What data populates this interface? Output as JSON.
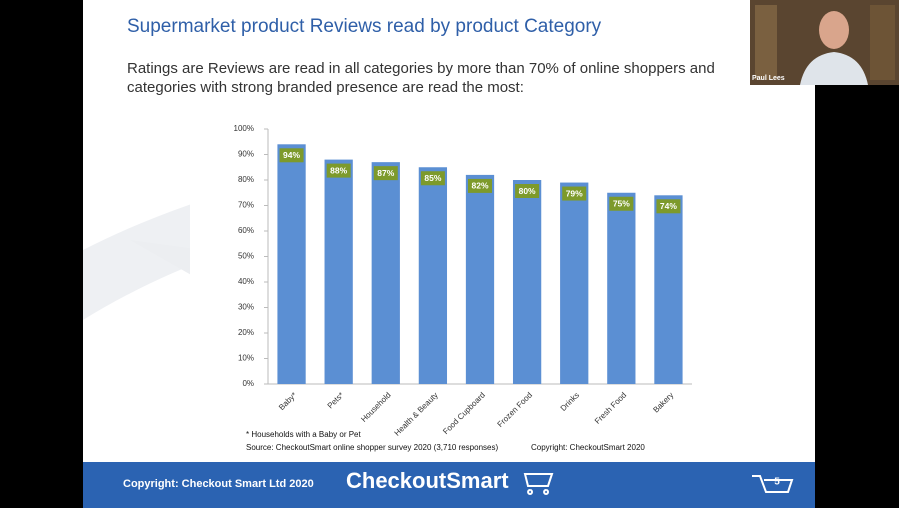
{
  "slide": {
    "title": "Supermarket product Reviews read by product Category",
    "subtitle_lines": [
      "Ratings are Reviews are read in all categories by more than 70% of online shoppers and",
      "categories with strong branded presence are read the most:"
    ],
    "footnote": "* Households with a Baby or Pet",
    "source": "Source: CheckoutSmart online shopper survey 2020 (3,710 responses)",
    "chart_copyright": "Copyright: CheckoutSmart 2020",
    "footer_copyright": "Copyright: Checkout Smart Ltd 2020",
    "logo": "CheckoutSmart",
    "page_number": "5"
  },
  "video": {
    "participant": "Paul Lees"
  },
  "chart_data": {
    "type": "bar",
    "categories": [
      "Baby*",
      "Pets*",
      "Household",
      "Health & Beauty",
      "Food Cupboard",
      "Frozen Food",
      "Drinks",
      "Fresh Food",
      "Bakery"
    ],
    "values": [
      94,
      88,
      87,
      85,
      82,
      80,
      79,
      75,
      74
    ],
    "value_labels": [
      "94%",
      "88%",
      "87%",
      "85%",
      "82%",
      "80%",
      "79%",
      "75%",
      "74%"
    ],
    "color": "#5b8fd3",
    "label_color": "#7d9a2b",
    "ylim": [
      0,
      100
    ],
    "yticks": [
      {
        "value": 0,
        "label": "0%"
      },
      {
        "value": 10,
        "label": "10%"
      },
      {
        "value": 20,
        "label": "20%"
      },
      {
        "value": 30,
        "label": "30%"
      },
      {
        "value": 40,
        "label": "40%"
      },
      {
        "value": 50,
        "label": "50%"
      },
      {
        "value": 60,
        "label": "60%"
      },
      {
        "value": 70,
        "label": "70%"
      },
      {
        "value": 80,
        "label": "80%"
      },
      {
        "value": 90,
        "label": "90%"
      },
      {
        "value": 100,
        "label": "100%"
      }
    ]
  }
}
